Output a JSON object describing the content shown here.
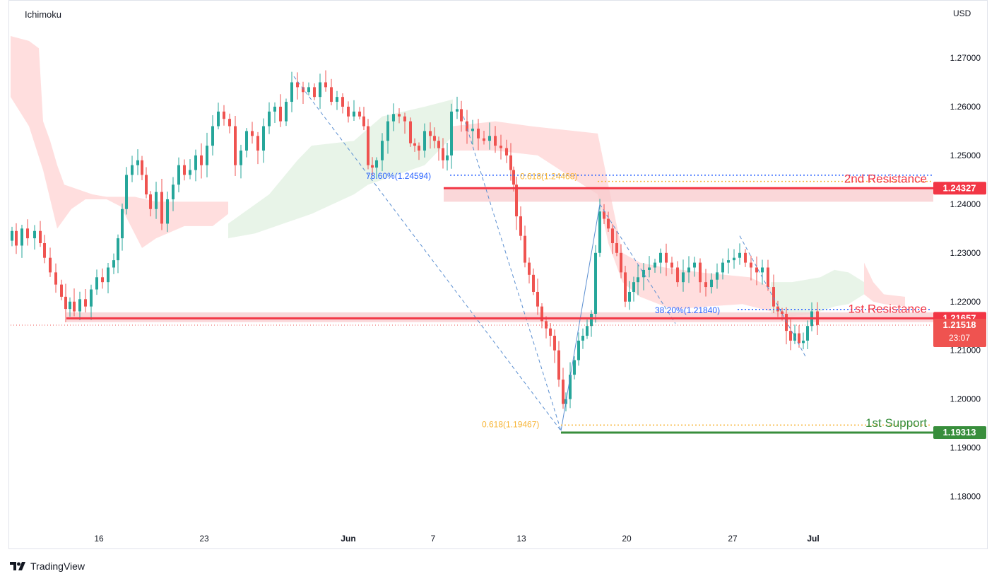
{
  "indicator_label": "Ichimoku",
  "currency_label": "USD",
  "brand": "TradingView",
  "colors": {
    "bull": "#26a69a",
    "bear": "#ef5350",
    "resistance": "#f23645",
    "support": "#388e3c",
    "fib": "#f7b536",
    "retrace": "#2962ff",
    "cloud_bull": "#e6f3e6",
    "cloud_bear": "#ffdada"
  },
  "chart_data": {
    "type": "candlestick",
    "x_ticks": [
      "16",
      "23",
      "Jun",
      "7",
      "13",
      "20",
      "27",
      "Jul"
    ],
    "y_ticks": [
      "1.27000",
      "1.26000",
      "1.25000",
      "1.24000",
      "1.23000",
      "1.22000",
      "1.21000",
      "1.20000",
      "1.19000",
      "1.18000"
    ],
    "ylim": [
      1.1705,
      1.2798
    ],
    "levels": [
      {
        "name": "2nd Resistance",
        "value": 1.24327,
        "label": "1.24327"
      },
      {
        "name": "1st Resistance",
        "value": 1.21657,
        "label": "1.21657"
      },
      {
        "name": "1st Support",
        "value": 1.19313,
        "label": "1.19313"
      }
    ],
    "current_price": {
      "value": 1.21518,
      "label": "1.21518",
      "countdown": "23:07"
    },
    "annotations": [
      {
        "text": "78.60%(1.24594)",
        "value": 1.24594
      },
      {
        "text": "0.618(1.24468)",
        "value": 1.24468
      },
      {
        "text": "38.20%(1.21840)",
        "value": 1.2184
      },
      {
        "text": "0.618(1.19467)",
        "value": 1.19467
      }
    ],
    "price_path": [
      [
        0,
        1.2355
      ],
      [
        8,
        1.2325
      ],
      [
        16,
        1.2345
      ],
      [
        22,
        1.2315
      ],
      [
        30,
        1.235
      ],
      [
        38,
        1.233
      ],
      [
        48,
        1.2345
      ],
      [
        56,
        1.232
      ],
      [
        62,
        1.229
      ],
      [
        70,
        1.226
      ],
      [
        78,
        1.2235
      ],
      [
        86,
        1.221
      ],
      [
        92,
        1.2185
      ],
      [
        98,
        1.22
      ],
      [
        104,
        1.218
      ],
      [
        112,
        1.2205
      ],
      [
        120,
        1.219
      ],
      [
        128,
        1.2225
      ],
      [
        136,
        1.225
      ],
      [
        144,
        1.224
      ],
      [
        152,
        1.227
      ],
      [
        160,
        1.2285
      ],
      [
        166,
        1.233
      ],
      [
        172,
        1.239
      ],
      [
        178,
        1.246
      ],
      [
        186,
        1.248
      ],
      [
        194,
        1.249
      ],
      [
        200,
        1.246
      ],
      [
        206,
        1.242
      ],
      [
        212,
        1.239
      ],
      [
        220,
        1.2425
      ],
      [
        228,
        1.236
      ],
      [
        236,
        1.241
      ],
      [
        244,
        1.244
      ],
      [
        252,
        1.248
      ],
      [
        260,
        1.246
      ],
      [
        268,
        1.247
      ],
      [
        276,
        1.25
      ],
      [
        284,
        1.248
      ],
      [
        292,
        1.252
      ],
      [
        300,
        1.256
      ],
      [
        308,
        1.259
      ],
      [
        316,
        1.2575
      ],
      [
        324,
        1.256
      ],
      [
        332,
        1.248
      ],
      [
        340,
        1.251
      ],
      [
        348,
        1.255
      ],
      [
        356,
        1.254
      ],
      [
        364,
        1.251
      ],
      [
        372,
        1.256
      ],
      [
        380,
        1.259
      ],
      [
        388,
        1.26
      ],
      [
        396,
        1.257
      ],
      [
        404,
        1.261
      ],
      [
        412,
        1.265
      ],
      [
        420,
        1.264
      ],
      [
        428,
        1.263
      ],
      [
        436,
        1.264
      ],
      [
        444,
        1.262
      ],
      [
        452,
        1.265
      ],
      [
        460,
        1.264
      ],
      [
        468,
        1.261
      ],
      [
        476,
        1.262
      ],
      [
        484,
        1.26
      ],
      [
        492,
        1.258
      ],
      [
        500,
        1.259
      ],
      [
        508,
        1.258
      ],
      [
        514,
        1.256
      ],
      [
        520,
        1.248
      ],
      [
        526,
        1.2475
      ],
      [
        532,
        1.249
      ],
      [
        540,
        1.253
      ],
      [
        548,
        1.257
      ],
      [
        556,
        1.2585
      ],
      [
        564,
        1.258
      ],
      [
        572,
        1.257
      ],
      [
        580,
        1.2525
      ],
      [
        586,
        1.252
      ],
      [
        592,
        1.251
      ],
      [
        600,
        1.255
      ],
      [
        608,
        1.254
      ],
      [
        614,
        1.253
      ],
      [
        620,
        1.2515
      ],
      [
        626,
        1.249
      ],
      [
        632,
        1.25
      ],
      [
        638,
        1.259
      ],
      [
        646,
        1.2595
      ],
      [
        652,
        1.257
      ],
      [
        660,
        1.255
      ],
      [
        668,
        1.2555
      ],
      [
        676,
        1.2535
      ],
      [
        684,
        1.253
      ],
      [
        692,
        1.254
      ],
      [
        700,
        1.252
      ],
      [
        708,
        1.2515
      ],
      [
        716,
        1.25
      ],
      [
        722,
        1.247
      ],
      [
        726,
        1.244
      ],
      [
        730,
        1.2375
      ],
      [
        736,
        1.2335
      ],
      [
        742,
        1.228
      ],
      [
        748,
        1.2255
      ],
      [
        754,
        1.222
      ],
      [
        760,
        1.219
      ],
      [
        766,
        1.216
      ],
      [
        772,
        1.2145
      ],
      [
        778,
        1.213
      ],
      [
        784,
        1.21
      ],
      [
        790,
        1.204
      ],
      [
        796,
        1.199
      ],
      [
        800,
        1.2
      ],
      [
        806,
        1.205
      ],
      [
        812,
        1.208
      ],
      [
        818,
        1.212
      ],
      [
        824,
        1.213
      ],
      [
        830,
        1.215
      ],
      [
        836,
        1.2175
      ],
      [
        842,
        1.23
      ],
      [
        848,
        1.2385
      ],
      [
        854,
        1.237
      ],
      [
        860,
        1.235
      ],
      [
        866,
        1.232
      ],
      [
        872,
        1.23
      ],
      [
        878,
        1.226
      ],
      [
        884,
        1.22
      ],
      [
        890,
        1.222
      ],
      [
        896,
        1.224
      ],
      [
        902,
        1.225
      ],
      [
        910,
        1.2265
      ],
      [
        918,
        1.227
      ],
      [
        926,
        1.228
      ],
      [
        934,
        1.23
      ],
      [
        942,
        1.228
      ],
      [
        950,
        1.227
      ],
      [
        958,
        1.224
      ],
      [
        966,
        1.226
      ],
      [
        974,
        1.227
      ],
      [
        982,
        1.228
      ],
      [
        990,
        1.224
      ],
      [
        998,
        1.223
      ],
      [
        1006,
        1.2245
      ],
      [
        1014,
        1.226
      ],
      [
        1022,
        1.228
      ],
      [
        1030,
        1.2285
      ],
      [
        1038,
        1.229
      ],
      [
        1046,
        1.23
      ],
      [
        1054,
        1.228
      ],
      [
        1062,
        1.227
      ],
      [
        1070,
        1.226
      ],
      [
        1078,
        1.227
      ],
      [
        1086,
        1.223
      ],
      [
        1094,
        1.219
      ],
      [
        1100,
        1.218
      ],
      [
        1106,
        1.2175
      ],
      [
        1112,
        1.214
      ],
      [
        1118,
        1.212
      ],
      [
        1124,
        1.2135
      ],
      [
        1130,
        1.2115
      ],
      [
        1136,
        1.212
      ],
      [
        1142,
        1.215
      ],
      [
        1148,
        1.218
      ],
      [
        1156,
        1.2152
      ]
    ],
    "fib_line": [
      [
        415,
        1.2662
      ],
      [
        793,
        1.1935
      ]
    ],
    "retrace_line": [
      [
        793,
        1.1935
      ],
      [
        848,
        1.24
      ]
    ]
  }
}
